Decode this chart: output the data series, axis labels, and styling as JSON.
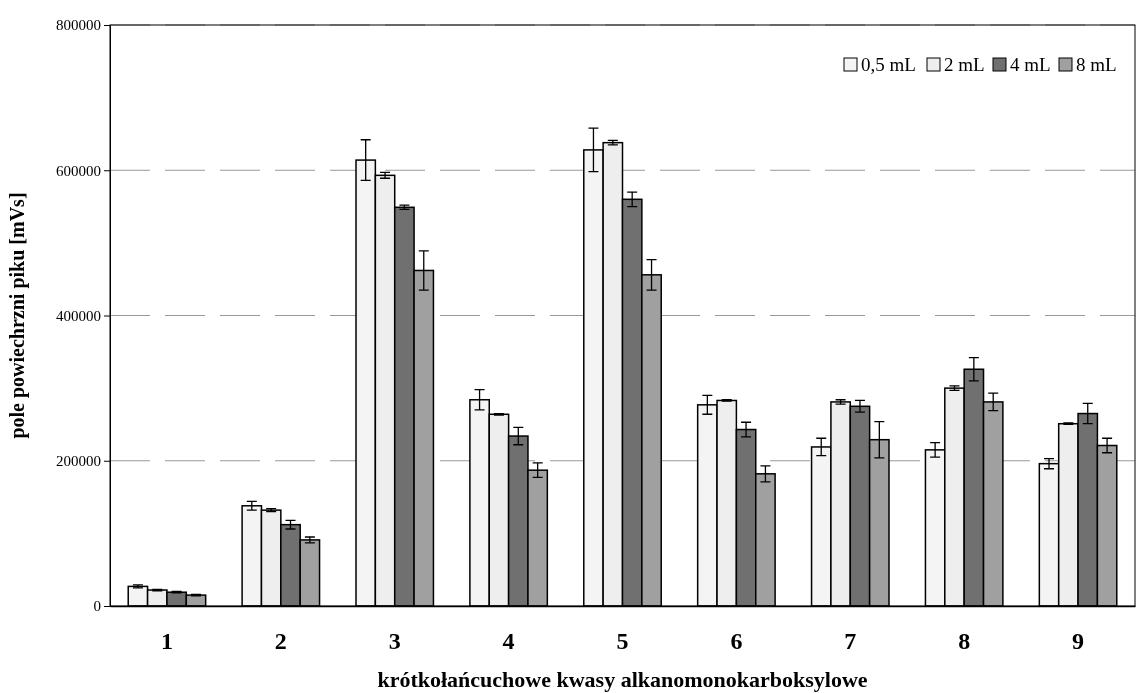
{
  "chart_data": {
    "type": "bar",
    "xlabel": "krótkołańcuchowe kwasy alkanomonokarboksylowe",
    "ylabel": "pole powiechrzni piku [mVs]",
    "categories": [
      "1",
      "2",
      "3",
      "4",
      "5",
      "6",
      "7",
      "8",
      "9"
    ],
    "series": [
      {
        "name": "0,5 mL",
        "color": "#f4f4f4",
        "values": [
          27000,
          138000,
          614000,
          284000,
          628000,
          277000,
          219000,
          215000,
          196000
        ],
        "errors": [
          2000,
          6000,
          28000,
          14000,
          30000,
          13000,
          12000,
          10000,
          7000
        ]
      },
      {
        "name": "2 mL",
        "color": "#eeeeee",
        "values": [
          22000,
          132000,
          593000,
          264000,
          638000,
          283000,
          281000,
          300000,
          251000
        ],
        "errors": [
          1000,
          2000,
          4000,
          1000,
          3000,
          1000,
          3000,
          3000,
          1000
        ]
      },
      {
        "name": "4 mL",
        "color": "#707070",
        "values": [
          19000,
          112000,
          549000,
          234000,
          560000,
          243000,
          275000,
          326000,
          265000
        ],
        "errors": [
          1000,
          6000,
          3000,
          12000,
          10000,
          10000,
          8000,
          16000,
          14000
        ]
      },
      {
        "name": "8 mL",
        "color": "#a0a0a0",
        "values": [
          15000,
          91000,
          462000,
          187000,
          456000,
          182000,
          229000,
          281000,
          221000
        ],
        "errors": [
          1000,
          4000,
          27000,
          10000,
          21000,
          11000,
          25000,
          12000,
          10000
        ]
      }
    ],
    "ylim": [
      0,
      800000
    ],
    "yticks": [
      0,
      200000,
      400000,
      600000,
      800000
    ],
    "grid": "y",
    "legend": "top right"
  }
}
